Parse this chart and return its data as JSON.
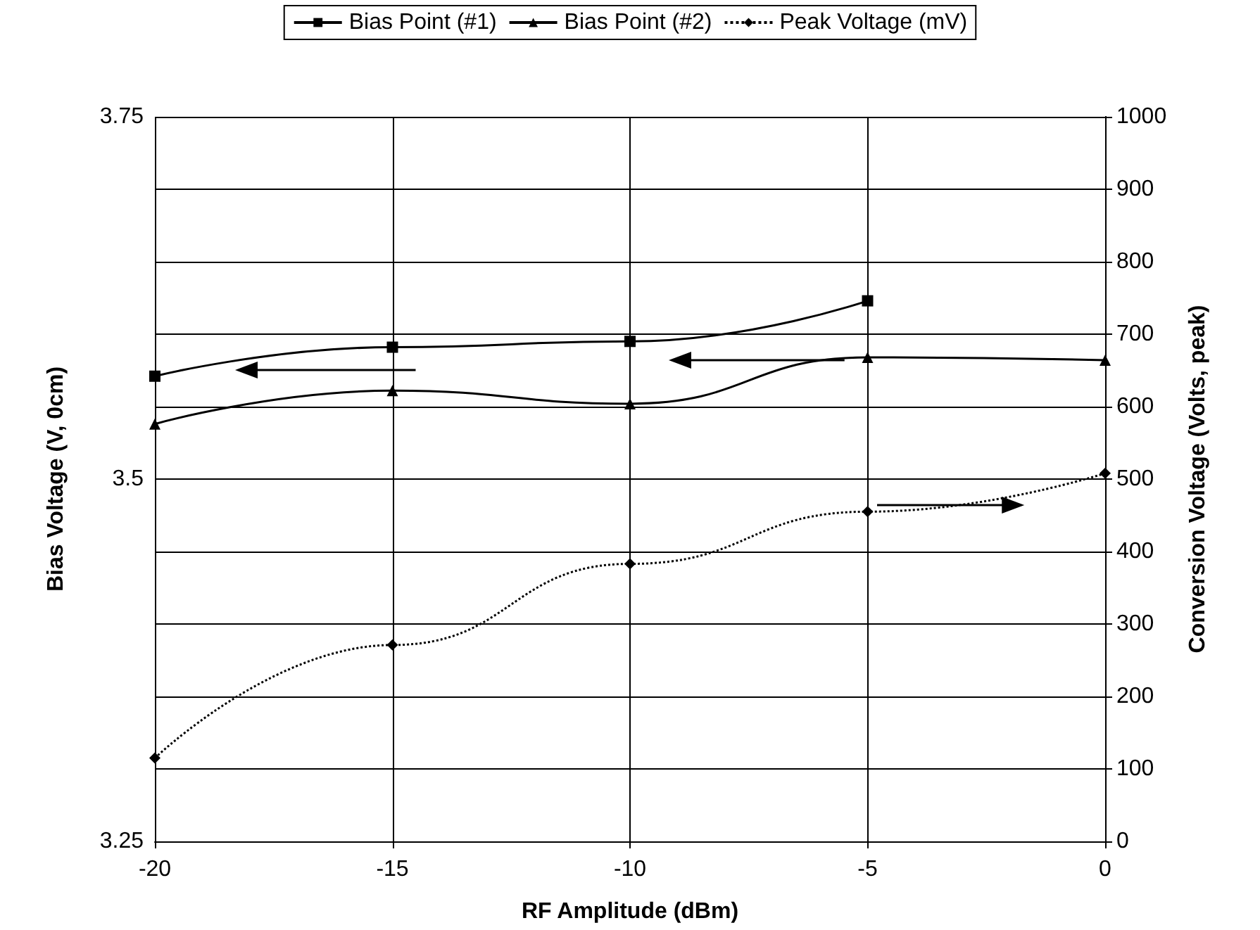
{
  "chart_data": {
    "type": "line",
    "xlabel": "RF Amplitude (dBm)",
    "ylabel": "Bias Voltage (V, 0cm)",
    "y2label": "Conversion Voltage (Volts, peak)",
    "x": [
      -20,
      -15,
      -10,
      -5,
      0
    ],
    "series": [
      {
        "name": "Bias Point (#1)",
        "color": "#000000",
        "marker": "square",
        "line_style": "solid",
        "values": [
          3.571,
          3.591,
          3.595,
          3.623,
          null
        ]
      },
      {
        "name": "Bias Point (#2)",
        "color": "#000000",
        "marker": "triangle",
        "line_style": "solid",
        "values": [
          3.538,
          3.561,
          3.552,
          3.584,
          3.582
        ]
      },
      {
        "name": "Peak Voltage (mV)",
        "color": "#000000",
        "marker": "diamond",
        "line_style": "dotted",
        "axis": "y2",
        "values": [
          115,
          271,
          383,
          455,
          508
        ]
      }
    ],
    "xlim": [
      -20,
      0
    ],
    "xticks": [
      -20,
      -15,
      -10,
      -5,
      0
    ],
    "ylim": [
      3.25,
      3.75
    ],
    "yticks": [
      3.25,
      {
        "value": 3.3,
        "label": null
      },
      {
        "value": 3.35,
        "label": null
      },
      {
        "value": 3.4,
        "label": null
      },
      {
        "value": 3.45,
        "label": null
      },
      3.5,
      {
        "value": 3.55,
        "label": null
      },
      {
        "value": 3.6,
        "label": null
      },
      {
        "value": 3.65,
        "label": null
      },
      {
        "value": 3.7,
        "label": null
      },
      3.75
    ],
    "y2lim": [
      0,
      1000
    ],
    "y2ticks": [
      0,
      100,
      200,
      300,
      400,
      500,
      600,
      700,
      800,
      900,
      1000
    ],
    "grid": true,
    "legend": "top"
  }
}
